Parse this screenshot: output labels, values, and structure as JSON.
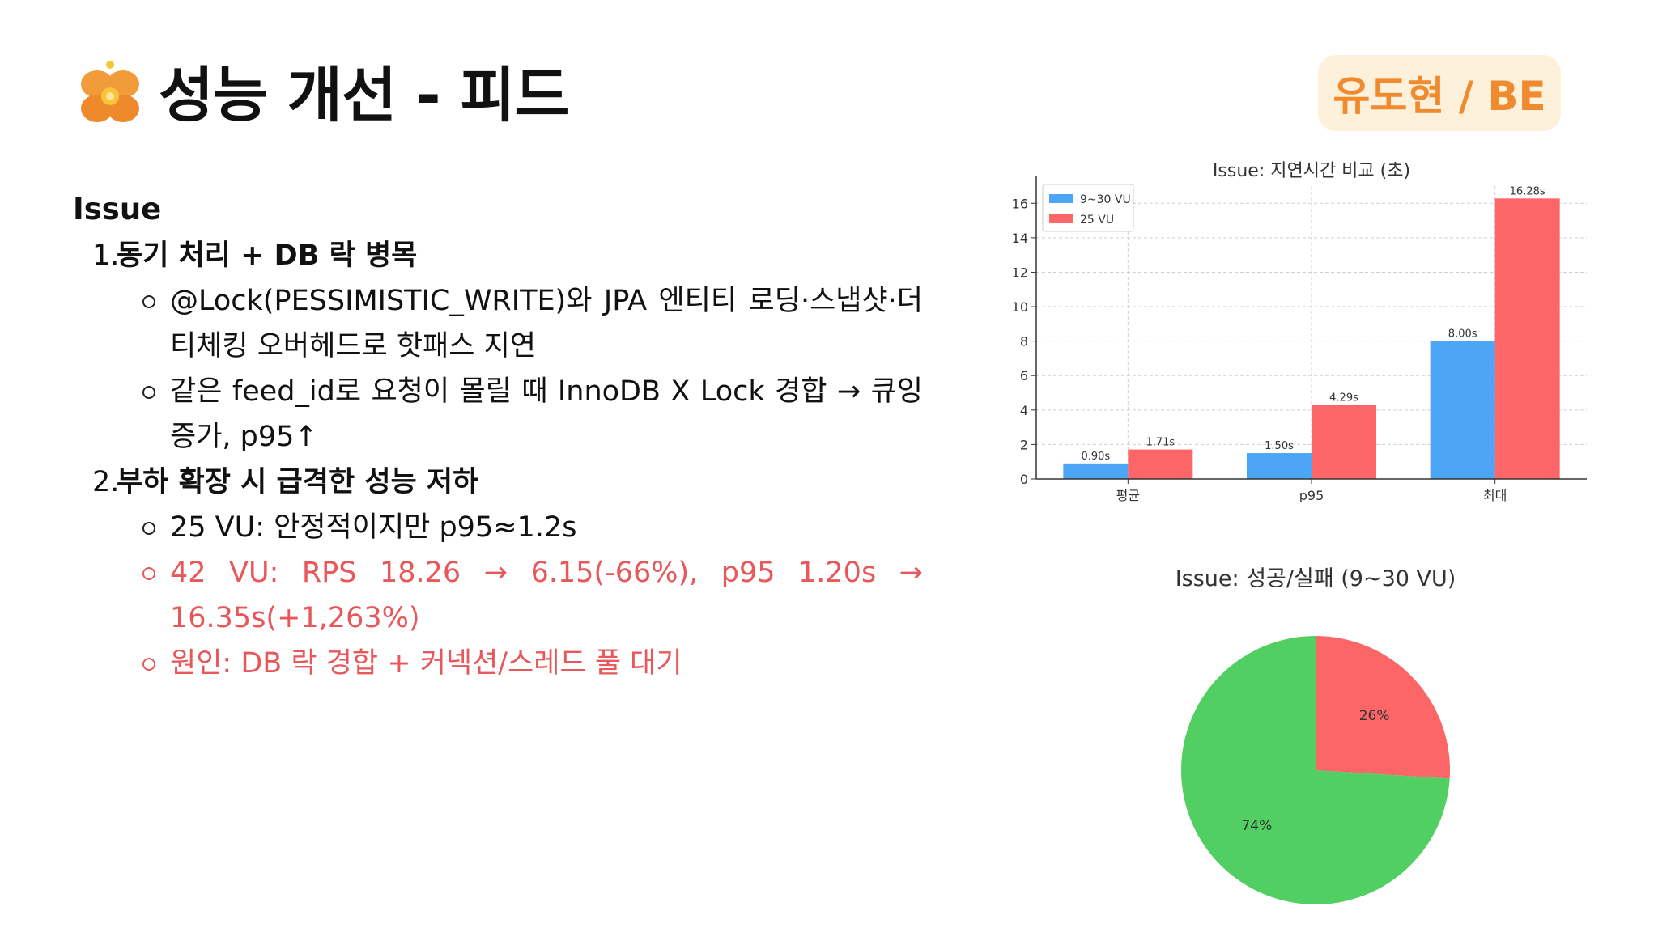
{
  "header": {
    "title": "성능 개선 - 피드",
    "author_badge": "유도현 / BE",
    "logo_icon": "orange-flower-logo-icon"
  },
  "content": {
    "section_heading": "Issue",
    "items": [
      {
        "number": "1.",
        "title": "동기 처리 + DB 락 병목",
        "bullets": [
          "@Lock(PESSIMISTIC_WRITE)와 JPA 엔티티 로딩·스냅샷·더티체킹 오버헤드로 핫패스 지연",
          "같은 feed_id로 요청이 몰릴 때 InnoDB X Lock 경합 → 큐잉 증가, p95↑"
        ]
      },
      {
        "number": "2.",
        "title": "부하 확장 시 급격한 성능 저하",
        "bullets": [
          "25 VU: 안정적이지만 p95≈1.2s",
          "42 VU: RPS 18.26 → 6.15(-66%), p95 1.20s → 16.35s(+1,263%)",
          "원인: DB 락 경합 + 커넥션/스레드 풀 대기"
        ]
      }
    ]
  },
  "colors": {
    "accent_orange": "#ef8a2f",
    "badge_bg": "#fdf1dc",
    "highlight_red": "#e8585b",
    "series_blue": "#4ca6f5",
    "series_red": "#fc6666",
    "pie_green": "#52cf62"
  },
  "chart_data": [
    {
      "type": "bar",
      "title": "Issue: 지연시간 비교 (초)",
      "categories": [
        "평균",
        "p95",
        "최대"
      ],
      "series": [
        {
          "name": "9~30 VU",
          "values": [
            0.9,
            1.5,
            8.0
          ],
          "labels": [
            "0.90s",
            "1.50s",
            "8.00s"
          ],
          "color": "#4ca6f5"
        },
        {
          "name": "25 VU",
          "values": [
            1.71,
            4.29,
            16.28
          ],
          "labels": [
            "1.71s",
            "4.29s",
            "16.28s"
          ],
          "color": "#fc6666"
        }
      ],
      "yticks": [
        "0",
        "2",
        "4",
        "6",
        "8",
        "10",
        "12",
        "14",
        "16"
      ],
      "ylim": [
        0,
        17
      ],
      "grid": true,
      "legend_position": "top-left"
    },
    {
      "type": "pie",
      "title": "Issue: 성공/실패 (9~30 VU)",
      "slices": [
        {
          "value": 26,
          "label": "26%",
          "color": "#fc6666"
        },
        {
          "value": 74,
          "label": "74%",
          "color": "#52cf62"
        }
      ]
    }
  ]
}
